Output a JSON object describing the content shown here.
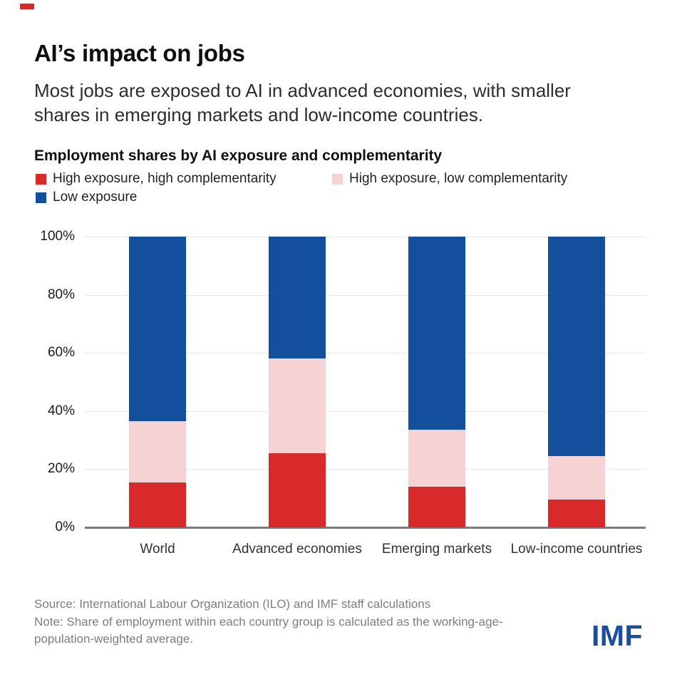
{
  "page": {
    "accent_color": "#d8292b",
    "background": "#ffffff"
  },
  "header": {
    "title": "AI’s impact on jobs",
    "subtitle": "Most jobs are exposed to AI in advanced economies, with smaller shares in emerging markets and low-income countries."
  },
  "chart_data": {
    "type": "bar",
    "stacked": true,
    "title": "Employment shares by AI exposure and complementarity",
    "categories": [
      "World",
      "Advanced economies",
      "Emerging markets",
      "Low-income countries"
    ],
    "series": [
      {
        "name": "High exposure, high complementarity",
        "color": "#d8292b",
        "values": [
          15.5,
          25.5,
          14,
          9.5
        ]
      },
      {
        "name": "High exposure, low complementarity",
        "color": "#f5d3d4",
        "values": [
          21,
          32.5,
          19.5,
          15
        ]
      },
      {
        "name": "Low exposure",
        "color": "#134f9c",
        "values": [
          63.5,
          42,
          66.5,
          75.5
        ]
      }
    ],
    "ylim": [
      0,
      100
    ],
    "yticks": [
      "0%",
      "20%",
      "40%",
      "60%",
      "80%",
      "100%"
    ],
    "grid": true,
    "legend_position": "top",
    "gridline_color": "#e7e7e7",
    "axis_color": "#7a7a7a"
  },
  "footer": {
    "source": "Source: International Labour Organization (ILO) and IMF staff calculations",
    "note": "Note: Share of employment within each country group is calculated as the working-age-population-weighted average.",
    "logo": "IMF",
    "logo_color": "#1b4e9b"
  }
}
